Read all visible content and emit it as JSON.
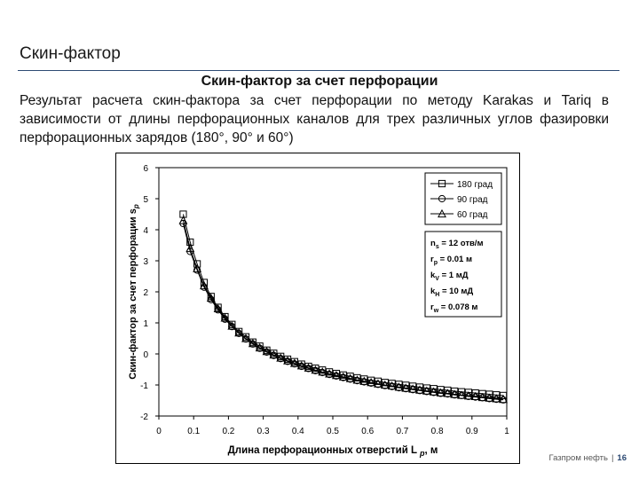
{
  "slide": {
    "title": "Скин-фактор",
    "section_heading": "Скин-фактор за счет перфорации",
    "description": "Результат расчета скин-фактора за счет перфорации по методу Karakas и Tariq в зависимости от длины перфорационных каналов для трех различных углов фазировки перфорационных зарядов (180°, 90° и 60°)"
  },
  "footer": {
    "company": "Газпром нефть",
    "separator": "|",
    "page_number": "16"
  },
  "chart_data": {
    "type": "line",
    "xlabel": "Длина перфорационных отверстий L",
    "xlabel_sub": "p",
    "xlabel_unit": ", м",
    "ylabel": "Скин-фактор за счет перфорации s",
    "ylabel_sub": "p",
    "xlim": [
      0,
      1
    ],
    "ylim": [
      -2,
      6
    ],
    "x_ticks": [
      "0",
      "0.1",
      "0.2",
      "0.3",
      "0.4",
      "0.5",
      "0.6",
      "0.7",
      "0.8",
      "0.9",
      "1"
    ],
    "y_ticks": [
      "-2",
      "-1",
      "0",
      "1",
      "2",
      "3",
      "4",
      "5",
      "6"
    ],
    "legend_position": "top-right",
    "series": [
      {
        "name": "180 град",
        "marker": "square",
        "x": [
          0.07,
          0.09,
          0.11,
          0.13,
          0.15,
          0.17,
          0.19,
          0.21,
          0.23,
          0.25,
          0.27,
          0.29,
          0.31,
          0.33,
          0.35,
          0.37,
          0.39,
          0.41,
          0.43,
          0.45,
          0.47,
          0.49,
          0.51,
          0.53,
          0.55,
          0.57,
          0.59,
          0.61,
          0.63,
          0.65,
          0.67,
          0.69,
          0.71,
          0.73,
          0.75,
          0.77,
          0.79,
          0.81,
          0.83,
          0.85,
          0.87,
          0.89,
          0.91,
          0.93,
          0.95,
          0.97,
          0.99
        ],
        "y": [
          4.5,
          3.6,
          2.9,
          2.3,
          1.85,
          1.5,
          1.2,
          0.95,
          0.72,
          0.55,
          0.38,
          0.25,
          0.12,
          0.02,
          -0.08,
          -0.17,
          -0.25,
          -0.33,
          -0.4,
          -0.46,
          -0.52,
          -0.58,
          -0.63,
          -0.68,
          -0.72,
          -0.77,
          -0.81,
          -0.85,
          -0.88,
          -0.92,
          -0.95,
          -0.98,
          -1.01,
          -1.04,
          -1.07,
          -1.1,
          -1.12,
          -1.15,
          -1.17,
          -1.2,
          -1.22,
          -1.24,
          -1.26,
          -1.28,
          -1.3,
          -1.32,
          -1.34
        ]
      },
      {
        "name": "90 град",
        "marker": "circle",
        "x": [
          0.07,
          0.09,
          0.11,
          0.13,
          0.15,
          0.17,
          0.19,
          0.21,
          0.23,
          0.25,
          0.27,
          0.29,
          0.31,
          0.33,
          0.35,
          0.37,
          0.39,
          0.41,
          0.43,
          0.45,
          0.47,
          0.49,
          0.51,
          0.53,
          0.55,
          0.57,
          0.59,
          0.61,
          0.63,
          0.65,
          0.67,
          0.69,
          0.71,
          0.73,
          0.75,
          0.77,
          0.79,
          0.81,
          0.83,
          0.85,
          0.87,
          0.89,
          0.91,
          0.93,
          0.95,
          0.97,
          0.99
        ],
        "y": [
          4.2,
          3.3,
          2.7,
          2.15,
          1.75,
          1.42,
          1.12,
          0.88,
          0.66,
          0.48,
          0.32,
          0.18,
          0.06,
          -0.05,
          -0.15,
          -0.24,
          -0.32,
          -0.4,
          -0.47,
          -0.54,
          -0.6,
          -0.66,
          -0.71,
          -0.76,
          -0.81,
          -0.86,
          -0.9,
          -0.94,
          -0.98,
          -1.02,
          -1.05,
          -1.09,
          -1.12,
          -1.15,
          -1.18,
          -1.21,
          -1.24,
          -1.27,
          -1.29,
          -1.32,
          -1.34,
          -1.37,
          -1.39,
          -1.41,
          -1.44,
          -1.46,
          -1.48
        ]
      },
      {
        "name": "60 град",
        "marker": "triangle",
        "x": [
          0.07,
          0.09,
          0.11,
          0.13,
          0.15,
          0.17,
          0.19,
          0.21,
          0.23,
          0.25,
          0.27,
          0.29,
          0.31,
          0.33,
          0.35,
          0.37,
          0.39,
          0.41,
          0.43,
          0.45,
          0.47,
          0.49,
          0.51,
          0.53,
          0.55,
          0.57,
          0.59,
          0.61,
          0.63,
          0.65,
          0.67,
          0.69,
          0.71,
          0.73,
          0.75,
          0.77,
          0.79,
          0.81,
          0.83,
          0.85,
          0.87,
          0.89,
          0.91,
          0.93,
          0.95,
          0.97,
          0.99
        ],
        "y": [
          4.3,
          3.4,
          2.75,
          2.2,
          1.8,
          1.46,
          1.16,
          0.9,
          0.68,
          0.5,
          0.34,
          0.2,
          0.08,
          -0.03,
          -0.13,
          -0.22,
          -0.3,
          -0.38,
          -0.45,
          -0.52,
          -0.58,
          -0.64,
          -0.69,
          -0.74,
          -0.79,
          -0.84,
          -0.88,
          -0.92,
          -0.96,
          -1.0,
          -1.03,
          -1.07,
          -1.1,
          -1.13,
          -1.16,
          -1.19,
          -1.22,
          -1.25,
          -1.27,
          -1.3,
          -1.33,
          -1.35,
          -1.37,
          -1.4,
          -1.42,
          -1.44,
          -1.46
        ]
      }
    ],
    "parameters": [
      {
        "label": "n",
        "sub": "s",
        "value": " = 12 отв/м"
      },
      {
        "label": "r",
        "sub": "p",
        "value": " = 0.01 м"
      },
      {
        "label": "k",
        "sub": "V",
        "value": " = 1 мД"
      },
      {
        "label": "k",
        "sub": "H",
        "value": " = 10 мД"
      },
      {
        "label": "r",
        "sub": "w",
        "value": " = 0.078 м"
      }
    ]
  }
}
